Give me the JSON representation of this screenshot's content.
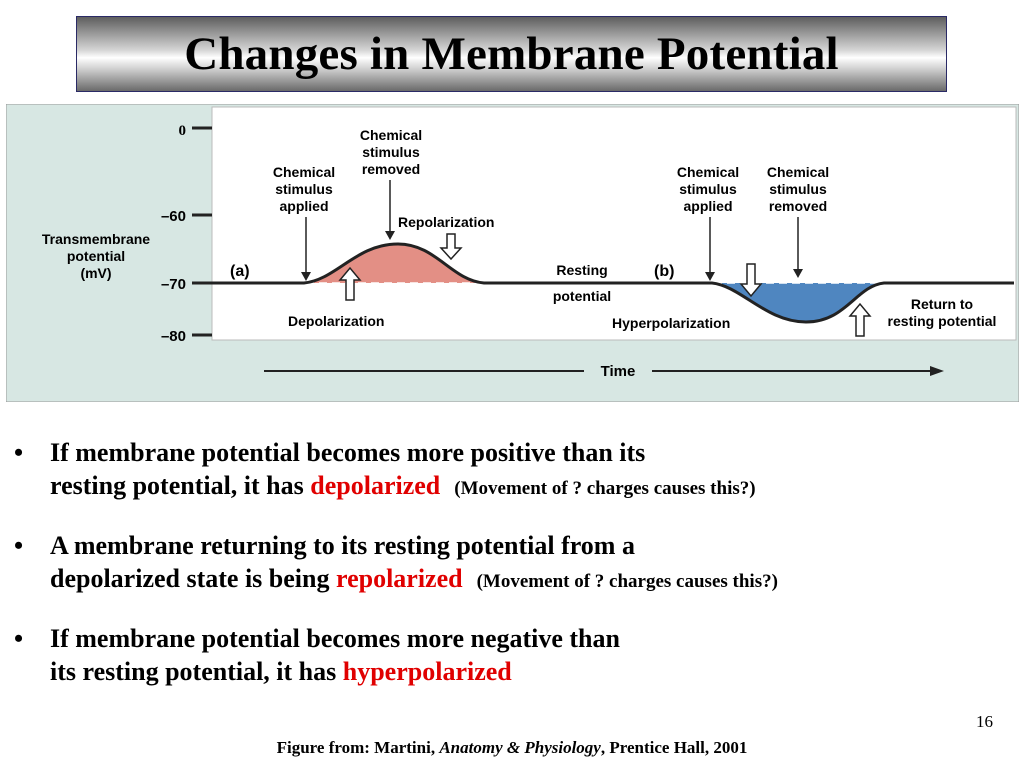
{
  "slide": {
    "title": "Changes in Membrane Potential",
    "slide_number": "16",
    "credit": {
      "prefix": "Figure from: Martini, ",
      "book": "Anatomy & Physiology",
      "suffix": ", Prentice Hall, 2001"
    }
  },
  "figure": {
    "y_axis_label": [
      "Transmembrane",
      "potential",
      "(mV)"
    ],
    "y_ticks": [
      {
        "label": "0",
        "value": 0
      },
      {
        "label": "–60",
        "value": -60
      },
      {
        "label": "–70",
        "value": -70
      },
      {
        "label": "–80",
        "value": -80
      }
    ],
    "x_axis_label": "Time",
    "panel_a": {
      "tag": "(a)",
      "stimulus_applied": [
        "Chemical",
        "stimulus",
        "applied"
      ],
      "stimulus_removed": [
        "Chemical",
        "stimulus",
        "removed"
      ],
      "repolarization": "Repolarization",
      "depolarization": "Depolarization"
    },
    "resting_potential": [
      "Resting",
      "potential"
    ],
    "panel_b": {
      "tag": "(b)",
      "stimulus_applied": [
        "Chemical",
        "stimulus",
        "applied"
      ],
      "stimulus_removed": [
        "Chemical",
        "stimulus",
        "removed"
      ],
      "hyperpolarization": "Hyperpolarization",
      "return_to_resting": [
        "Return to",
        "resting potential"
      ]
    },
    "colors": {
      "panel_bg": "#d7e7e3",
      "depolarization_fill": "#e38f85",
      "hyperpolarization_fill": "#4f86c0",
      "trace": "#222222"
    }
  },
  "bullets": [
    {
      "line1": "If membrane potential becomes more positive than its",
      "line2": "resting potential, it has ",
      "highlight": "depolarized",
      "note": "(Movement of ? charges causes this?)"
    },
    {
      "line1": "A membrane returning to its resting potential from a",
      "line2": "depolarized state is being ",
      "highlight": "repolarized",
      "note": "(Movement of ? charges causes this?)"
    },
    {
      "line1": "If membrane potential becomes more negative than",
      "line2": "its resting potential, it has ",
      "highlight": "hyperpolarized",
      "note": ""
    }
  ]
}
